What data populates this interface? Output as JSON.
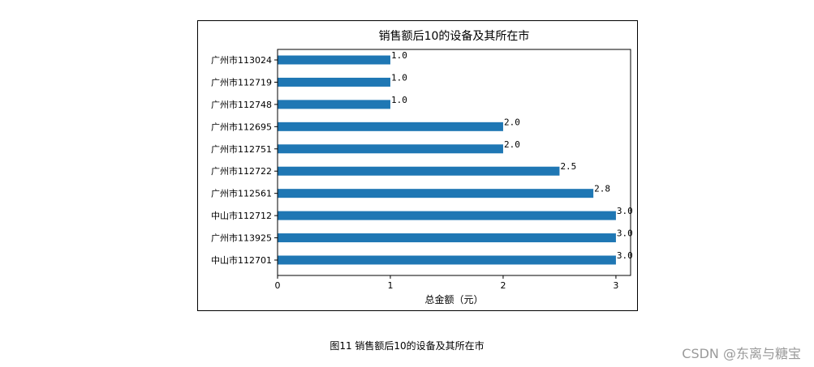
{
  "chart_data": {
    "type": "bar",
    "orientation": "horizontal",
    "title": "销售额后10的设备及其所在市",
    "xlabel": "总金额（元）",
    "ylabel": "",
    "xlim": [
      0,
      3.13
    ],
    "xticks": [
      "0",
      "1",
      "2",
      "3"
    ],
    "grid": false,
    "bar_color": "#1f77b4",
    "categories": [
      "广州市113024",
      "广州市112719",
      "广州市112748",
      "广州市112695",
      "广州市112751",
      "广州市112722",
      "广州市112561",
      "中山市112712",
      "广州市113925",
      "中山市112701"
    ],
    "values": [
      1.0,
      1.0,
      1.0,
      2.0,
      2.0,
      2.5,
      2.8,
      3.0,
      3.0,
      3.0
    ],
    "data_labels": [
      "1.0",
      "1.0",
      "1.0",
      "2.0",
      "2.0",
      "2.5",
      "2.8",
      "3.0",
      "3.0",
      "3.0"
    ]
  },
  "caption": "图11 销售额后10的设备及其所在市",
  "watermark": "CSDN @东离与糖宝"
}
